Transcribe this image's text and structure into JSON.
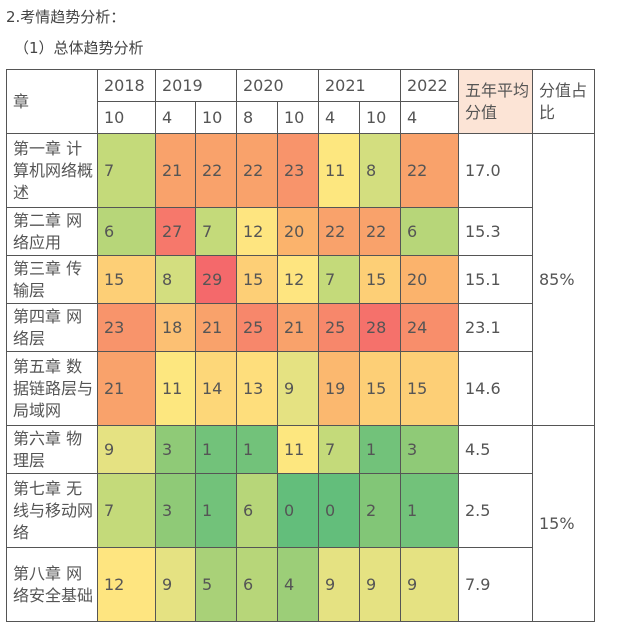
{
  "heading": "2.考情趋势分析：",
  "subheading": "（1）总体趋势分析",
  "table": {
    "chapter_header": "章",
    "avg_header": "五年平均分值",
    "share_header": "分值占比",
    "years": [
      {
        "year": "2018",
        "span": 1
      },
      {
        "year": "2019",
        "span": 2
      },
      {
        "year": "2020",
        "span": 2
      },
      {
        "year": "2021",
        "span": 2
      },
      {
        "year": "2022",
        "span": 1
      }
    ],
    "months": [
      "10",
      "4",
      "10",
      "8",
      "10",
      "4",
      "10",
      "4"
    ],
    "rows": [
      {
        "chapter": "第一章 计算机网络概述",
        "values": [
          "7",
          "21",
          "22",
          "22",
          "23",
          "11",
          "8",
          "22"
        ],
        "colors": [
          "#c4da7a",
          "#f9a26b",
          "#f9a26b",
          "#f9a26b",
          "#f8946b",
          "#fde77f",
          "#d3de7f",
          "#f9a26b"
        ],
        "avg": "17.0"
      },
      {
        "chapter": "第二章 网络应用",
        "values": [
          "6",
          "27",
          "7",
          "12",
          "20",
          "22",
          "22",
          "6"
        ],
        "colors": [
          "#b7d679",
          "#f6786b",
          "#c4da7a",
          "#fee580",
          "#fbb36c",
          "#f9a26b",
          "#f9a26b",
          "#b7d679"
        ],
        "avg": "15.3"
      },
      {
        "chapter": "第三章 传输层",
        "values": [
          "15",
          "8",
          "29",
          "15",
          "12",
          "7",
          "15",
          "20"
        ],
        "colors": [
          "#fdcf76",
          "#d3de7f",
          "#f4696b",
          "#fdcf76",
          "#fee580",
          "#c4da7a",
          "#fdcf76",
          "#fbb36c"
        ],
        "avg": "15.1"
      },
      {
        "chapter": "第四章 网络层",
        "values": [
          "23",
          "18",
          "21",
          "25",
          "21",
          "25",
          "28",
          "24"
        ],
        "colors": [
          "#f8946b",
          "#fcc073",
          "#f9a26b",
          "#f7876b",
          "#f9a26b",
          "#f7876b",
          "#f5716b",
          "#f88e6b"
        ],
        "avg": "23.1"
      },
      {
        "chapter": "第五章 数据链路层与局域网",
        "values": [
          "21",
          "11",
          "14",
          "13",
          "9",
          "19",
          "15",
          "15"
        ],
        "colors": [
          "#f9a26b",
          "#fde77f",
          "#fdd779",
          "#fede7c",
          "#e5e282",
          "#fbb86f",
          "#fdcf76",
          "#fdcf76"
        ],
        "avg": "14.6"
      },
      {
        "chapter": "第六章 物理层",
        "values": [
          "9",
          "3",
          "1",
          "1",
          "11",
          "7",
          "1",
          "3"
        ],
        "colors": [
          "#e5e282",
          "#8fca77",
          "#72c27a",
          "#72c27a",
          "#fde77f",
          "#c4da7a",
          "#72c27a",
          "#8fca77"
        ],
        "avg": "4.5"
      },
      {
        "chapter": "第七章 无线与移动网络",
        "values": [
          "7",
          "3",
          "1",
          "6",
          "0",
          "0",
          "2",
          "1"
        ],
        "colors": [
          "#c4da7a",
          "#8fca77",
          "#72c27a",
          "#b7d679",
          "#63be7b",
          "#63be7b",
          "#82c677",
          "#72c27a"
        ],
        "avg": "2.5"
      },
      {
        "chapter": "第八章 网络安全基础",
        "values": [
          "12",
          "9",
          "5",
          "6",
          "4",
          "9",
          "9",
          "9"
        ],
        "colors": [
          "#fee580",
          "#e5e282",
          "#a9d178",
          "#b7d679",
          "#9cce78",
          "#e5e282",
          "#e5e282",
          "#e5e282"
        ],
        "avg": "7.9"
      }
    ],
    "share_groups": [
      {
        "label": "85%",
        "rows": 5
      },
      {
        "label": "15%",
        "rows": 3
      }
    ]
  }
}
